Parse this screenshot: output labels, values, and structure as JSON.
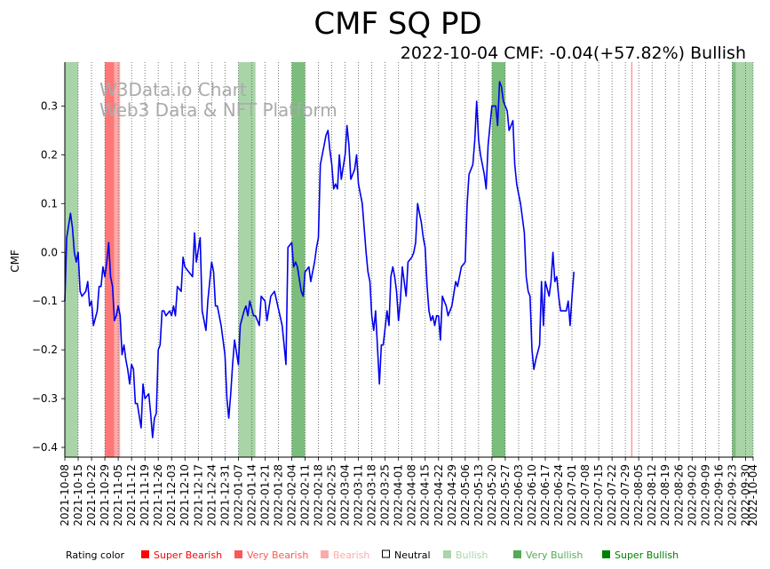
{
  "chart_data": {
    "type": "line",
    "title": "CMF SQ PD",
    "subtitle": "2022-10-04 CMF: -0.04(+57.82%) Bullish",
    "ylabel": "CMF",
    "xlabel": "",
    "ylim": [
      -0.42,
      0.39
    ],
    "x_range": [
      "2021-10-08",
      "2022-10-04"
    ],
    "yticks": [
      0.3,
      0.2,
      0.1,
      0.0,
      -0.1,
      -0.2,
      -0.3,
      -0.4
    ],
    "ytick_labels": [
      "0.3",
      "0.2",
      "0.1",
      "0.0",
      "−0.1",
      "−0.2",
      "−0.3",
      "−0.4"
    ],
    "xticks": [
      "2021-10-08",
      "2021-10-15",
      "2021-10-22",
      "2021-10-29",
      "2021-11-05",
      "2021-11-12",
      "2021-11-19",
      "2021-11-26",
      "2021-12-03",
      "2021-12-10",
      "2021-12-17",
      "2021-12-24",
      "2021-12-31",
      "2022-01-07",
      "2022-01-14",
      "2022-01-21",
      "2022-01-28",
      "2022-02-04",
      "2022-02-11",
      "2022-02-18",
      "2022-02-25",
      "2022-03-04",
      "2022-03-11",
      "2022-03-18",
      "2022-03-25",
      "2022-04-01",
      "2022-04-08",
      "2022-04-15",
      "2022-04-22",
      "2022-04-29",
      "2022-05-06",
      "2022-05-13",
      "2022-05-20",
      "2022-05-27",
      "2022-06-03",
      "2022-06-10",
      "2022-06-17",
      "2022-06-24",
      "2022-07-01",
      "2022-07-08",
      "2022-07-15",
      "2022-07-22",
      "2022-07-29",
      "2022-08-05",
      "2022-08-12",
      "2022-08-19",
      "2022-08-26",
      "2022-09-02",
      "2022-09-09",
      "2022-09-16",
      "2022-09-23",
      "2022-09-30",
      "2022-10-04"
    ],
    "grid": "x-dotted",
    "line_color": "#0000ee",
    "watermark": [
      "W3Data.io Chart",
      "Web3 Data & NFT Platform"
    ],
    "bands": [
      {
        "start": "2021-10-08",
        "end": "2021-10-15",
        "rating": "Bullish"
      },
      {
        "start": "2021-10-29",
        "end": "2021-11-03",
        "rating": "Super Bearish"
      },
      {
        "start": "2021-11-03",
        "end": "2021-11-06",
        "rating": "Bearish"
      },
      {
        "start": "2022-01-07",
        "end": "2022-01-16",
        "rating": "Bullish"
      },
      {
        "start": "2022-02-04",
        "end": "2022-02-11",
        "rating": "Very Bullish"
      },
      {
        "start": "2022-05-20",
        "end": "2022-05-27",
        "rating": "Very Bullish"
      },
      {
        "start": "2022-08-01",
        "end": "2022-08-01",
        "rating": "Very Bearish"
      },
      {
        "start": "2022-09-23",
        "end": "2022-09-25",
        "rating": "Very Bullish"
      },
      {
        "start": "2022-09-25",
        "end": "2022-10-01",
        "rating": "Bullish"
      },
      {
        "start": "2022-10-01",
        "end": "2022-10-04",
        "rating": "Bullish"
      }
    ],
    "series": [
      {
        "values": [
          [
            "2021-10-08",
            -0.1
          ],
          [
            "2021-10-09",
            0.03
          ],
          [
            "2021-10-11",
            0.08
          ],
          [
            "2021-10-12",
            0.05
          ],
          [
            "2021-10-13",
            0.0
          ],
          [
            "2021-10-14",
            -0.02
          ],
          [
            "2021-10-15",
            0.0
          ],
          [
            "2021-10-16",
            -0.08
          ],
          [
            "2021-10-17",
            -0.09
          ],
          [
            "2021-10-19",
            -0.08
          ],
          [
            "2021-10-20",
            -0.06
          ],
          [
            "2021-10-21",
            -0.11
          ],
          [
            "2021-10-22",
            -0.1
          ],
          [
            "2021-10-23",
            -0.15
          ],
          [
            "2021-10-25",
            -0.12
          ],
          [
            "2021-10-26",
            -0.07
          ],
          [
            "2021-10-27",
            -0.07
          ],
          [
            "2021-10-28",
            -0.03
          ],
          [
            "2021-10-29",
            -0.05
          ],
          [
            "2021-10-30",
            -0.02
          ],
          [
            "2021-10-31",
            0.02
          ],
          [
            "2021-11-01",
            -0.05
          ],
          [
            "2021-11-02",
            -0.07
          ],
          [
            "2021-11-03",
            -0.14
          ],
          [
            "2021-11-04",
            -0.13
          ],
          [
            "2021-11-05",
            -0.11
          ],
          [
            "2021-11-06",
            -0.13
          ],
          [
            "2021-11-07",
            -0.21
          ],
          [
            "2021-11-08",
            -0.19
          ],
          [
            "2021-11-09",
            -0.22
          ],
          [
            "2021-11-10",
            -0.24
          ],
          [
            "2021-11-11",
            -0.27
          ],
          [
            "2021-11-12",
            -0.23
          ],
          [
            "2021-11-13",
            -0.24
          ],
          [
            "2021-11-14",
            -0.31
          ],
          [
            "2021-11-15",
            -0.31
          ],
          [
            "2021-11-17",
            -0.36
          ],
          [
            "2021-11-18",
            -0.27
          ],
          [
            "2021-11-19",
            -0.3
          ],
          [
            "2021-11-21",
            -0.29
          ],
          [
            "2021-11-22",
            -0.33
          ],
          [
            "2021-11-23",
            -0.38
          ],
          [
            "2021-11-24",
            -0.34
          ],
          [
            "2021-11-25",
            -0.33
          ],
          [
            "2021-11-26",
            -0.2
          ],
          [
            "2021-11-27",
            -0.19
          ],
          [
            "2021-11-28",
            -0.12
          ],
          [
            "2021-11-29",
            -0.12
          ],
          [
            "2021-11-30",
            -0.13
          ],
          [
            "2021-12-02",
            -0.12
          ],
          [
            "2021-12-03",
            -0.13
          ],
          [
            "2021-12-04",
            -0.11
          ],
          [
            "2021-12-05",
            -0.13
          ],
          [
            "2021-12-06",
            -0.07
          ],
          [
            "2021-12-08",
            -0.08
          ],
          [
            "2021-12-09",
            -0.01
          ],
          [
            "2021-12-10",
            -0.03
          ],
          [
            "2021-12-14",
            -0.05
          ],
          [
            "2021-12-15",
            0.04
          ],
          [
            "2021-12-16",
            -0.02
          ],
          [
            "2021-12-18",
            0.03
          ],
          [
            "2021-12-19",
            -0.12
          ],
          [
            "2021-12-21",
            -0.16
          ],
          [
            "2021-12-22",
            -0.1
          ],
          [
            "2021-12-24",
            -0.02
          ],
          [
            "2021-12-25",
            -0.04
          ],
          [
            "2021-12-26",
            -0.11
          ],
          [
            "2021-12-27",
            -0.11
          ],
          [
            "2021-12-29",
            -0.15
          ],
          [
            "2021-12-31",
            -0.21
          ],
          [
            "2022-01-01",
            -0.3
          ],
          [
            "2022-01-02",
            -0.34
          ],
          [
            "2022-01-03",
            -0.29
          ],
          [
            "2022-01-04",
            -0.23
          ],
          [
            "2022-01-05",
            -0.18
          ],
          [
            "2022-01-07",
            -0.23
          ],
          [
            "2022-01-08",
            -0.15
          ],
          [
            "2022-01-10",
            -0.12
          ],
          [
            "2022-01-11",
            -0.11
          ],
          [
            "2022-01-12",
            -0.13
          ],
          [
            "2022-01-13",
            -0.1
          ],
          [
            "2022-01-15",
            -0.13
          ],
          [
            "2022-01-16",
            -0.13
          ],
          [
            "2022-01-18",
            -0.15
          ],
          [
            "2022-01-19",
            -0.09
          ],
          [
            "2022-01-21",
            -0.1
          ],
          [
            "2022-01-22",
            -0.14
          ],
          [
            "2022-01-24",
            -0.09
          ],
          [
            "2022-01-26",
            -0.08
          ],
          [
            "2022-01-30",
            -0.15
          ],
          [
            "2022-01-31",
            -0.19
          ],
          [
            "2022-02-01",
            -0.23
          ],
          [
            "2022-02-02",
            0.01
          ],
          [
            "2022-02-04",
            0.02
          ],
          [
            "2022-02-05",
            -0.03
          ],
          [
            "2022-02-06",
            -0.02
          ],
          [
            "2022-02-07",
            -0.03
          ],
          [
            "2022-02-09",
            -0.08
          ],
          [
            "2022-02-10",
            -0.09
          ],
          [
            "2022-02-11",
            -0.04
          ],
          [
            "2022-02-13",
            -0.03
          ],
          [
            "2022-02-14",
            -0.06
          ],
          [
            "2022-02-16",
            -0.02
          ],
          [
            "2022-02-17",
            0.01
          ],
          [
            "2022-02-18",
            0.03
          ],
          [
            "2022-02-19",
            0.18
          ],
          [
            "2022-02-21",
            0.22
          ],
          [
            "2022-02-22",
            0.24
          ],
          [
            "2022-02-23",
            0.25
          ],
          [
            "2022-02-24",
            0.21
          ],
          [
            "2022-02-25",
            0.18
          ],
          [
            "2022-02-26",
            0.13
          ],
          [
            "2022-02-27",
            0.14
          ],
          [
            "2022-02-28",
            0.13
          ],
          [
            "2022-03-01",
            0.2
          ],
          [
            "2022-03-02",
            0.15
          ],
          [
            "2022-03-04",
            0.2
          ],
          [
            "2022-03-05",
            0.26
          ],
          [
            "2022-03-06",
            0.22
          ],
          [
            "2022-03-07",
            0.15
          ],
          [
            "2022-03-09",
            0.17
          ],
          [
            "2022-03-10",
            0.2
          ],
          [
            "2022-03-11",
            0.14
          ],
          [
            "2022-03-13",
            0.1
          ],
          [
            "2022-03-15",
            0.0
          ],
          [
            "2022-03-16",
            -0.04
          ],
          [
            "2022-03-17",
            -0.06
          ],
          [
            "2022-03-18",
            -0.13
          ],
          [
            "2022-03-19",
            -0.16
          ],
          [
            "2022-03-20",
            -0.12
          ],
          [
            "2022-03-22",
            -0.27
          ],
          [
            "2022-03-23",
            -0.19
          ],
          [
            "2022-03-24",
            -0.19
          ],
          [
            "2022-03-26",
            -0.12
          ],
          [
            "2022-03-27",
            -0.15
          ],
          [
            "2022-03-28",
            -0.05
          ],
          [
            "2022-03-29",
            -0.03
          ],
          [
            "2022-03-30",
            -0.05
          ],
          [
            "2022-03-31",
            -0.08
          ],
          [
            "2022-04-01",
            -0.14
          ],
          [
            "2022-04-02",
            -0.1
          ],
          [
            "2022-04-03",
            -0.03
          ],
          [
            "2022-04-04",
            -0.06
          ],
          [
            "2022-04-05",
            -0.09
          ],
          [
            "2022-04-06",
            -0.02
          ],
          [
            "2022-04-08",
            -0.01
          ],
          [
            "2022-04-09",
            0.0
          ],
          [
            "2022-04-10",
            0.02
          ],
          [
            "2022-04-11",
            0.1
          ],
          [
            "2022-04-13",
            0.06
          ],
          [
            "2022-04-14",
            0.03
          ],
          [
            "2022-04-15",
            0.01
          ],
          [
            "2022-04-16",
            -0.07
          ],
          [
            "2022-04-17",
            -0.12
          ],
          [
            "2022-04-18",
            -0.14
          ],
          [
            "2022-04-19",
            -0.13
          ],
          [
            "2022-04-20",
            -0.15
          ],
          [
            "2022-04-21",
            -0.13
          ],
          [
            "2022-04-22",
            -0.13
          ],
          [
            "2022-04-23",
            -0.18
          ],
          [
            "2022-04-24",
            -0.09
          ],
          [
            "2022-04-25",
            -0.1
          ],
          [
            "2022-04-26",
            -0.11
          ],
          [
            "2022-04-27",
            -0.13
          ],
          [
            "2022-04-29",
            -0.11
          ],
          [
            "2022-05-01",
            -0.06
          ],
          [
            "2022-05-02",
            -0.07
          ],
          [
            "2022-05-04",
            -0.03
          ],
          [
            "2022-05-06",
            -0.02
          ],
          [
            "2022-05-07",
            0.1
          ],
          [
            "2022-05-08",
            0.16
          ],
          [
            "2022-05-10",
            0.18
          ],
          [
            "2022-05-11",
            0.23
          ],
          [
            "2022-05-12",
            0.31
          ],
          [
            "2022-05-13",
            0.23
          ],
          [
            "2022-05-14",
            0.2
          ],
          [
            "2022-05-16",
            0.16
          ],
          [
            "2022-05-17",
            0.13
          ],
          [
            "2022-05-18",
            0.22
          ],
          [
            "2022-05-19",
            0.26
          ],
          [
            "2022-05-20",
            0.3
          ],
          [
            "2022-05-22",
            0.3
          ],
          [
            "2022-05-23",
            0.26
          ],
          [
            "2022-05-24",
            0.35
          ],
          [
            "2022-05-25",
            0.34
          ],
          [
            "2022-05-26",
            0.31
          ],
          [
            "2022-05-27",
            0.3
          ],
          [
            "2022-05-28",
            0.29
          ],
          [
            "2022-05-29",
            0.25
          ],
          [
            "2022-05-30",
            0.26
          ],
          [
            "2022-05-31",
            0.27
          ],
          [
            "2022-06-01",
            0.18
          ],
          [
            "2022-06-02",
            0.14
          ],
          [
            "2022-06-03",
            0.12
          ],
          [
            "2022-06-04",
            0.1
          ],
          [
            "2022-06-06",
            0.04
          ],
          [
            "2022-06-07",
            -0.05
          ],
          [
            "2022-06-08",
            -0.08
          ],
          [
            "2022-06-09",
            -0.09
          ],
          [
            "2022-06-10",
            -0.2
          ],
          [
            "2022-06-11",
            -0.24
          ],
          [
            "2022-06-12",
            -0.22
          ],
          [
            "2022-06-14",
            -0.19
          ],
          [
            "2022-06-15",
            -0.06
          ],
          [
            "2022-06-16",
            -0.15
          ],
          [
            "2022-06-17",
            -0.06
          ],
          [
            "2022-06-19",
            -0.09
          ],
          [
            "2022-06-20",
            -0.06
          ],
          [
            "2022-06-21",
            0.0
          ],
          [
            "2022-06-22",
            -0.06
          ],
          [
            "2022-06-23",
            -0.05
          ],
          [
            "2022-06-24",
            -0.09
          ],
          [
            "2022-06-25",
            -0.12
          ],
          [
            "2022-06-27",
            -0.12
          ],
          [
            "2022-06-28",
            -0.12
          ],
          [
            "2022-06-29",
            -0.1
          ],
          [
            "2022-06-30",
            -0.15
          ],
          [
            "2022-07-01",
            -0.09
          ],
          [
            "2022-07-02",
            -0.04
          ]
        ]
      }
    ]
  },
  "legend": {
    "title": "Rating color",
    "placement": "bottom",
    "items": [
      {
        "label": "Super Bearish",
        "color": "#ff0000"
      },
      {
        "label": "Very Bearish",
        "color": "#ff5555"
      },
      {
        "label": "Bearish",
        "color": "#ffaaaa"
      },
      {
        "label": "Neutral",
        "color": "#000000"
      },
      {
        "label": "Bullish",
        "color": "#aad4aa"
      },
      {
        "label": "Very Bullish",
        "color": "#55aa55"
      },
      {
        "label": "Super Bullish",
        "color": "#008000"
      }
    ]
  },
  "band_colors": {
    "Super Bearish": "#ff7777",
    "Very Bearish": "#ff9999",
    "Bearish": "#ffaaaa",
    "Bullish": "#a8d4a8",
    "Very Bullish": "#7bbd7b",
    "Super Bullish": "#008000"
  }
}
